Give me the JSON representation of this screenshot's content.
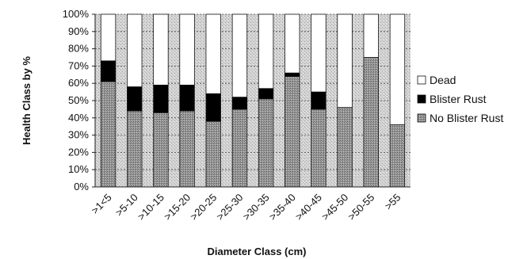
{
  "chart_data": {
    "type": "bar",
    "stacked": true,
    "percent": true,
    "title": "",
    "xlabel": "Diameter Class (cm)",
    "ylabel": "Health Class by %",
    "ylim": [
      0,
      100
    ],
    "yticks": [
      "0%",
      "10%",
      "20%",
      "30%",
      "40%",
      "50%",
      "60%",
      "70%",
      "80%",
      "90%",
      "100%"
    ],
    "categories": [
      ">1<5",
      ">5-10",
      ">10-15",
      ">15-20",
      ">20-25",
      ">25-30",
      ">30-35",
      ">35-40",
      ">40-45",
      ">45-50",
      ">50-55",
      ">55"
    ],
    "series": [
      {
        "name": "No Blister Rust",
        "color": "#8c8c8c",
        "pattern": "dotted",
        "values": [
          61,
          44,
          43,
          44,
          38,
          45,
          51,
          64,
          45,
          46,
          75,
          36
        ]
      },
      {
        "name": "Blister Rust",
        "color": "#000000",
        "values": [
          12,
          14,
          16,
          15,
          16,
          7,
          6,
          2,
          10,
          0,
          0,
          0
        ]
      },
      {
        "name": "Dead",
        "color": "#ffffff",
        "values": [
          27,
          42,
          41,
          41,
          46,
          48,
          43,
          34,
          45,
          54,
          25,
          64
        ]
      }
    ],
    "legend": {
      "position": "right",
      "items": [
        {
          "label": "Dead",
          "series": "Dead"
        },
        {
          "label": "Blister Rust",
          "series": "Blister Rust"
        },
        {
          "label": "No Blister Rust",
          "series": "No Blister Rust"
        }
      ]
    },
    "grid": true,
    "plot_background": "stippled grey"
  }
}
